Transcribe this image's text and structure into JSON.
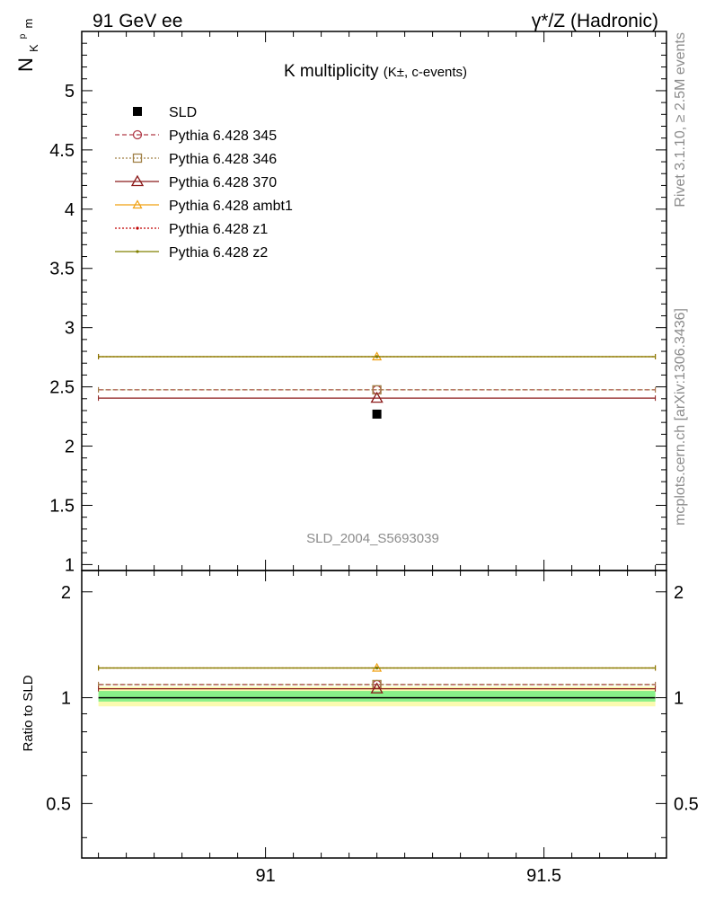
{
  "header": {
    "left": "91 GeV ee",
    "right": "γ*/Z (Hadronic)"
  },
  "side_labels": {
    "rivet": "Rivet 3.1.10, ≥ 2.5M events",
    "mcplots": "mcplots.cern.ch [arXiv:1306.3436]"
  },
  "chart_data": [
    {
      "type": "scatter",
      "title_main": "K multiplicity",
      "title_sub": "(K±, c-events)",
      "ylabel_base": "N",
      "ylabel_sub": "K",
      "ylabel_sup": "p",
      "ylabel_tail": "m",
      "watermark": "SLD_2004_S5693039",
      "xlim": [
        90.67,
        91.72
      ],
      "ylim": [
        0.95,
        5.5
      ],
      "yticks_labeled": [
        1,
        1.5,
        2,
        2.5,
        3,
        3.5,
        4,
        4.5,
        5
      ],
      "x_bin": [
        90.7,
        91.7
      ],
      "x_point": 91.2,
      "legend_position": "top-left",
      "series": [
        {
          "name": "SLD",
          "kind": "data",
          "color": "#000000",
          "value": 2.27
        },
        {
          "name": "Pythia 6.428 345",
          "kind": "mc",
          "color": "#b03a48",
          "dash": "5,3",
          "marker": "circle",
          "value": 2.475
        },
        {
          "name": "Pythia 6.428 346",
          "kind": "mc",
          "color": "#a08046",
          "dash": "2,2",
          "marker": "square",
          "value": 2.475
        },
        {
          "name": "Pythia 6.428 370",
          "kind": "mc",
          "color": "#8b1a1a",
          "dash": "",
          "marker": "triangle",
          "value": 2.405
        },
        {
          "name": "Pythia 6.428 ambt1",
          "kind": "mc",
          "color": "#f0a010",
          "dash": "",
          "marker": "triangle-small",
          "value": 2.755
        },
        {
          "name": "Pythia 6.428 z1",
          "kind": "mc",
          "color": "#c00000",
          "dash": "2,2",
          "marker": "dot",
          "value": 2.755
        },
        {
          "name": "Pythia 6.428 z2",
          "kind": "mc",
          "color": "#808000",
          "dash": "",
          "marker": "dot",
          "value": 2.755
        }
      ]
    },
    {
      "type": "scatter",
      "ylabel": "Ratio to SLD",
      "xlim": [
        90.67,
        91.72
      ],
      "ylim": [
        0.35,
        2.3
      ],
      "xticks_labeled": [
        91,
        91.5
      ],
      "yticks_labeled": [
        0.5,
        1,
        2
      ],
      "band_inner": [
        0.975,
        1.045
      ],
      "band_outer": [
        0.945,
        1.075
      ],
      "band_inner_color": "#88f088",
      "band_outer_color": "#fafab0",
      "series": [
        {
          "name": "Pythia 6.428 345",
          "color": "#b03a48",
          "dash": "5,3",
          "marker": "circle",
          "value": 1.09
        },
        {
          "name": "Pythia 6.428 346",
          "color": "#a08046",
          "dash": "2,2",
          "marker": "square",
          "value": 1.09
        },
        {
          "name": "Pythia 6.428 370",
          "color": "#8b1a1a",
          "dash": "",
          "marker": "triangle",
          "value": 1.06
        },
        {
          "name": "Pythia 6.428 ambt1",
          "color": "#f0a010",
          "dash": "",
          "marker": "triangle-small",
          "value": 1.215
        },
        {
          "name": "Pythia 6.428 z1",
          "color": "#c00000",
          "dash": "2,2",
          "marker": "dot",
          "value": 1.215
        },
        {
          "name": "Pythia 6.428 z2",
          "color": "#808000",
          "dash": "",
          "marker": "dot",
          "value": 1.215
        }
      ]
    }
  ]
}
